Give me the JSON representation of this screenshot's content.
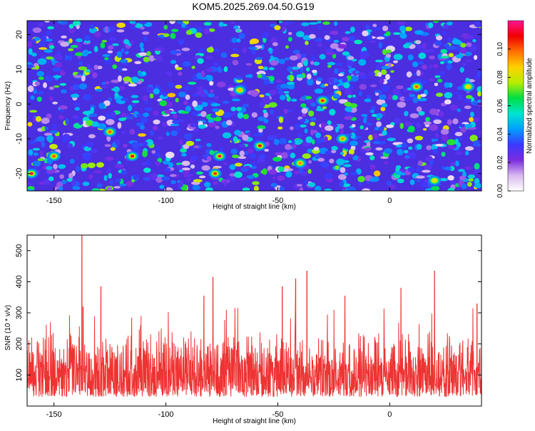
{
  "title": "KOM5.2025.269.04.50.G19",
  "chart_data": [
    {
      "type": "heatmap",
      "name": "spectrogram",
      "xlabel": "Height of straight line (km)",
      "ylabel": "Frequency (Hz)",
      "xlim": [
        -162,
        41
      ],
      "ylim": [
        -25,
        24
      ],
      "xticks": [
        -150,
        -100,
        -50,
        0
      ],
      "yticks": [
        -20,
        -10,
        0,
        10,
        20
      ],
      "colorbar": {
        "label": "Normalized spectral amplitude",
        "range": [
          0.0,
          0.12
        ],
        "ticks": [
          0.0,
          0.02,
          0.04,
          0.06,
          0.08,
          0.1
        ],
        "tick_labels": [
          "0.00",
          "0.02",
          "0.04",
          "0.06",
          "0.08",
          "0.10"
        ],
        "colors": [
          "#ffffff",
          "#d8b8f0",
          "#7b2be0",
          "#3a3aff",
          "#00a0ff",
          "#00e5d0",
          "#00dd44",
          "#b8ee00",
          "#ffd000",
          "#ff7000",
          "#ee0000",
          "#ff1493"
        ]
      },
      "hotspots": [
        {
          "x": -160,
          "y": -20,
          "v": 0.115
        },
        {
          "x": -150,
          "y": -15,
          "v": 0.1
        },
        {
          "x": -115,
          "y": -15,
          "v": 0.11
        },
        {
          "x": -125,
          "y": -8,
          "v": 0.1
        },
        {
          "x": -78,
          "y": -20,
          "v": 0.105
        },
        {
          "x": -76,
          "y": -15,
          "v": 0.115
        },
        {
          "x": -58,
          "y": -12,
          "v": 0.11
        },
        {
          "x": -30,
          "y": 1,
          "v": 0.105
        },
        {
          "x": -21,
          "y": -10,
          "v": 0.095
        },
        {
          "x": -67,
          "y": 4,
          "v": 0.09
        },
        {
          "x": -40,
          "y": -17,
          "v": 0.095
        },
        {
          "x": 12,
          "y": 5,
          "v": 0.1
        },
        {
          "x": 20,
          "y": -22,
          "v": 0.08
        },
        {
          "x": 35,
          "y": 5,
          "v": 0.085
        }
      ]
    },
    {
      "type": "line",
      "name": "snr",
      "xlabel": "Height of straight line (km)",
      "ylabel": "SNR (10 * v/v)",
      "xlim": [
        -162,
        41
      ],
      "ylim": [
        0,
        550
      ],
      "xticks": [
        -150,
        -100,
        -50,
        0
      ],
      "yticks": [
        100,
        200,
        300,
        400,
        500
      ],
      "series": [
        {
          "name": "SNR",
          "color": "#ee3333",
          "baseline": 120,
          "typical_high": 250,
          "peaks": [
            {
              "x": -137.5,
              "y": 550
            },
            {
              "x": -137,
              "y": 320
            },
            {
              "x": -129,
              "y": 385
            },
            {
              "x": -83,
              "y": 355
            },
            {
              "x": -79,
              "y": 415
            },
            {
              "x": -48,
              "y": 385
            },
            {
              "x": -42,
              "y": 410
            },
            {
              "x": -37,
              "y": 435
            },
            {
              "x": -20,
              "y": 355
            },
            {
              "x": 5,
              "y": 380
            },
            {
              "x": 20,
              "y": 435
            },
            {
              "x": 39,
              "y": 330
            }
          ]
        }
      ]
    }
  ]
}
